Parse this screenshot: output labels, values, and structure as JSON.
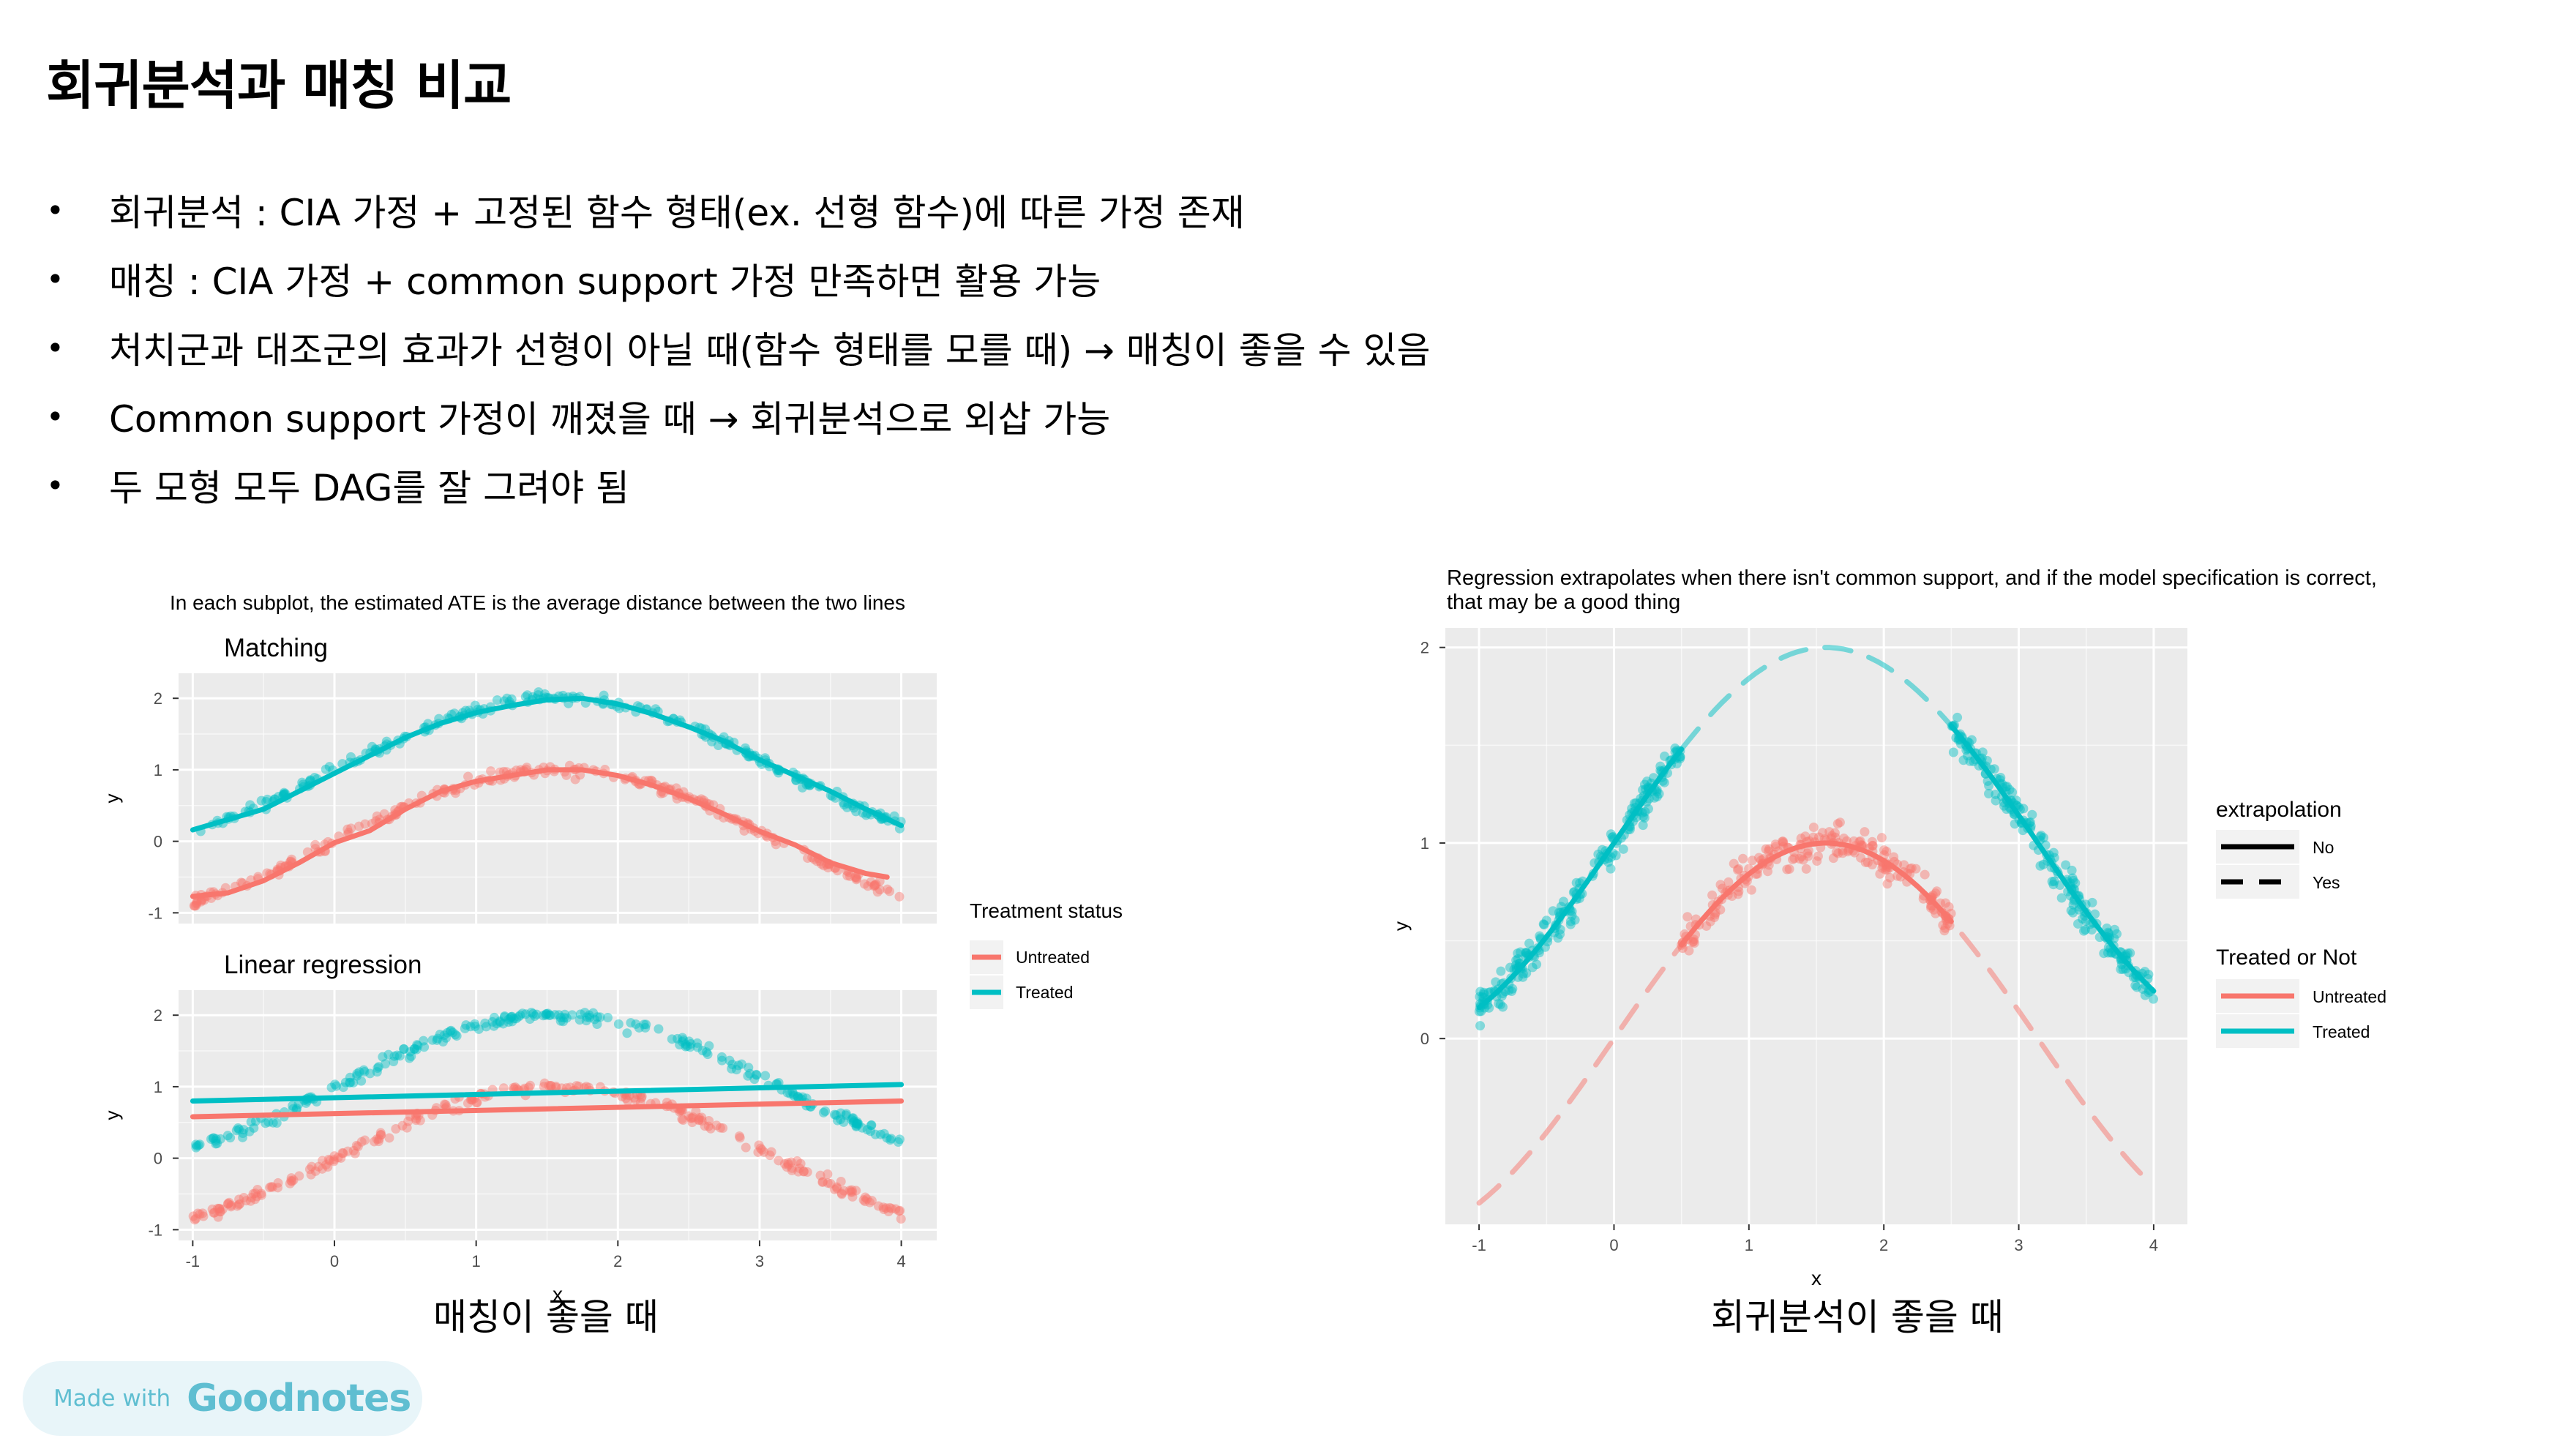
{
  "page": {
    "title": "회귀분석과 매칭 비교",
    "bullets": [
      "회귀분석 : CIA 가정 + 고정된 함수 형태(ex. 선형 함수)에 따른 가정 존재",
      "매칭 : CIA 가정 + common support 가정 만족하면 활용 가능",
      "처치군과 대조군의 효과가 선형이 아닐 때(함수 형태를 모를 때) → 매칭이 좋을 수 있음",
      "Common support 가정이 깨졌을 때 → 회귀분석으로 외삽 가능",
      "두 모형 모두 DAG를 잘 그려야 됨"
    ],
    "bullet_glyph": "•",
    "caption_left": "매칭이 좋을 때",
    "caption_right": "회귀분석이 좋을 때",
    "goodnotes": {
      "made_with": "Made with",
      "brand": "Goodnotes"
    }
  },
  "colors": {
    "untreated": "#F8766D",
    "treated": "#00BFC4",
    "panel_bg": "#EBEBEB",
    "grid": "#FFFFFF"
  },
  "chart_data": [
    {
      "type": "scatter",
      "title": "In each subplot, the estimated ATE is the average distance between the two lines",
      "xlabel": "x",
      "ylabel": "y",
      "xlim": [
        -1.1,
        4.25
      ],
      "ylim": [
        -1.15,
        2.35
      ],
      "x_ticks": [
        -1,
        0,
        1,
        2,
        3,
        4
      ],
      "y_ticks": [
        -1,
        0,
        1,
        2
      ],
      "legend": {
        "title": "Treatment status",
        "placement": "right",
        "items": [
          "Untreated",
          "Treated"
        ]
      },
      "panels": [
        {
          "label": "Matching",
          "series": [
            {
              "name": "Untreated",
              "values_fn": "sin(x)",
              "x_range": [
                -1,
                4
              ],
              "fit": "matched-loess",
              "line": [
                [
                  -1,
                  -0.77
                ],
                [
                  -0.75,
                  -0.72
                ],
                [
                  -0.5,
                  -0.55
                ],
                [
                  -0.25,
                  -0.3
                ],
                [
                  0,
                  -0.02
                ],
                [
                  0.25,
                  0.15
                ],
                [
                  0.5,
                  0.45
                ],
                [
                  0.75,
                  0.7
                ],
                [
                  1,
                  0.84
                ],
                [
                  1.25,
                  0.92
                ],
                [
                  1.5,
                  1.0
                ],
                [
                  1.75,
                  1.0
                ],
                [
                  2,
                  0.92
                ],
                [
                  2.25,
                  0.78
                ],
                [
                  2.5,
                  0.6
                ],
                [
                  2.75,
                  0.38
                ],
                [
                  3,
                  0.14
                ],
                [
                  3.25,
                  -0.05
                ],
                [
                  3.5,
                  -0.3
                ],
                [
                  3.75,
                  -0.45
                ],
                [
                  3.9,
                  -0.5
                ]
              ]
            },
            {
              "name": "Treated",
              "values_fn": "sin(x)+1",
              "x_range": [
                -1,
                4
              ],
              "fit": "matched-loess",
              "line": [
                [
                  -1,
                  0.16
                ],
                [
                  -0.5,
                  0.45
                ],
                [
                  0,
                  0.95
                ],
                [
                  0.25,
                  1.2
                ],
                [
                  0.5,
                  1.45
                ],
                [
                  0.75,
                  1.65
                ],
                [
                  1,
                  1.8
                ],
                [
                  1.25,
                  1.9
                ],
                [
                  1.5,
                  1.98
                ],
                [
                  1.75,
                  2.0
                ],
                [
                  2,
                  1.92
                ],
                [
                  2.25,
                  1.78
                ],
                [
                  2.5,
                  1.6
                ],
                [
                  2.75,
                  1.4
                ],
                [
                  3,
                  1.14
                ],
                [
                  3.25,
                  0.92
                ],
                [
                  3.5,
                  0.7
                ],
                [
                  3.75,
                  0.45
                ],
                [
                  4,
                  0.22
                ]
              ]
            }
          ]
        },
        {
          "label": "Linear regression",
          "series": [
            {
              "name": "Untreated",
              "values_fn": "sin(x)",
              "x_range": [
                -1,
                4
              ],
              "fit": "linear",
              "line": [
                [
                  -1,
                  0.58
                ],
                [
                  4,
                  0.8
                ]
              ]
            },
            {
              "name": "Treated",
              "values_fn": "sin(x)+1",
              "x_range": [
                -1,
                4
              ],
              "fit": "linear",
              "line": [
                [
                  -1,
                  0.8
                ],
                [
                  4,
                  1.03
                ]
              ]
            }
          ]
        }
      ]
    },
    {
      "type": "scatter",
      "title": "Regression extrapolates when there isn't common support, and if the model specification is correct, that may be a good thing",
      "xlabel": "x",
      "ylabel": "y",
      "xlim": [
        -1.25,
        4.25
      ],
      "ylim": [
        -0.95,
        2.1
      ],
      "x_ticks": [
        -1,
        0,
        1,
        2,
        3,
        4
      ],
      "y_ticks": [
        0,
        1,
        2
      ],
      "legend": [
        {
          "title": "extrapolation",
          "items": [
            "No",
            "Yes"
          ]
        },
        {
          "title": "Treated or Not",
          "items": [
            "Untreated",
            "Treated"
          ]
        }
      ],
      "legend_placement": "right",
      "series": [
        {
          "name": "Untreated",
          "values_fn": "sin(x)",
          "x_range": [
            0.5,
            2.5
          ],
          "extrapolated_range": [
            -1,
            4
          ]
        },
        {
          "name": "Treated",
          "values_fn": "sin(x)+1",
          "x_range": [
            [
              -1,
              0.5
            ],
            [
              2.5,
              4
            ]
          ],
          "extrapolated_range": [
            0.5,
            2.5
          ]
        }
      ]
    }
  ]
}
